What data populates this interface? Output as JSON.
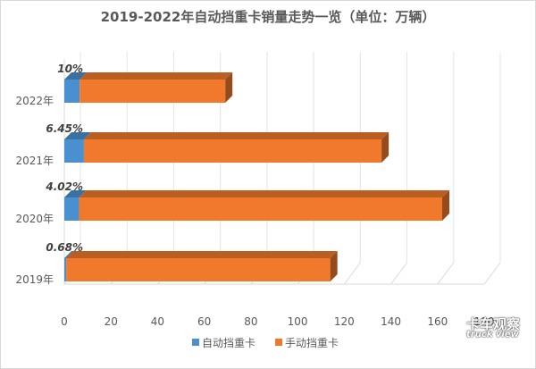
{
  "chart_data": {
    "type": "bar",
    "orientation": "horizontal",
    "stacked": true,
    "title": "2019-2022年自动挡重卡销量走势一览（单位：万辆）",
    "categories": [
      "2022年",
      "2021年",
      "2020年",
      "2019年"
    ],
    "series": [
      {
        "name": "自动挡重卡",
        "values": [
          6.6,
          8.4,
          6.3,
          0.8
        ],
        "color": "#4a90d0"
      },
      {
        "name": "手动挡重卡",
        "values": [
          62.4,
          127.6,
          155.7,
          113.2
        ],
        "color": "#f0792b"
      }
    ],
    "data_labels": [
      "10%",
      "6.45%",
      "4.02%",
      "0.68%"
    ],
    "xlim": [
      0,
      180
    ],
    "x_ticks": [
      0,
      20,
      40,
      60,
      80,
      100,
      120,
      140,
      160,
      180
    ],
    "legend": "bottom",
    "grid": true
  },
  "watermark": {
    "line1": "卡车观察",
    "line2": "truck view"
  }
}
